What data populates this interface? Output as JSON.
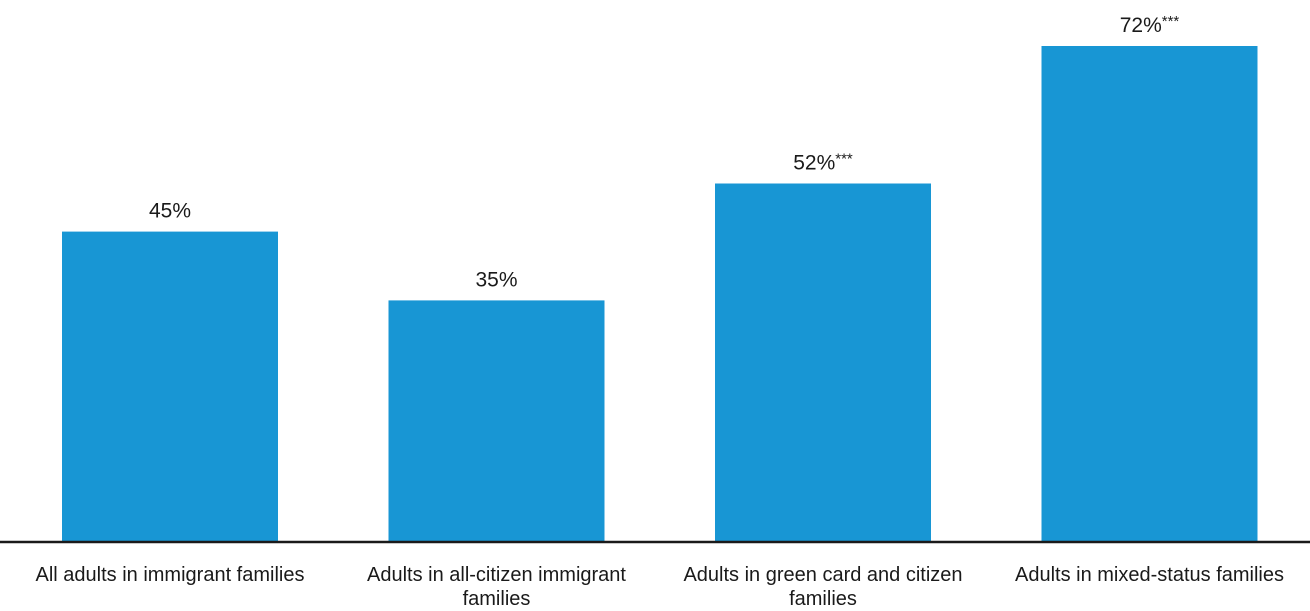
{
  "chart_data": {
    "type": "bar",
    "categories": [
      [
        "All adults in immigrant families"
      ],
      [
        "Adults in all-citizen immigrant",
        "families"
      ],
      [
        "Adults in green card and citizen",
        "families"
      ],
      [
        "Adults in mixed-status families"
      ]
    ],
    "values": [
      45,
      35,
      52,
      72
    ],
    "value_labels": [
      "45%",
      "35%",
      "52%",
      "72%"
    ],
    "significance_marks": [
      "",
      "",
      "***",
      "***"
    ],
    "unit": "%",
    "ylim": [
      0,
      75
    ],
    "grid": false,
    "legend": "none",
    "colors": {
      "bar": "#1896d4",
      "axis": "#1a1a1a",
      "text": "#1a1a1a"
    }
  }
}
